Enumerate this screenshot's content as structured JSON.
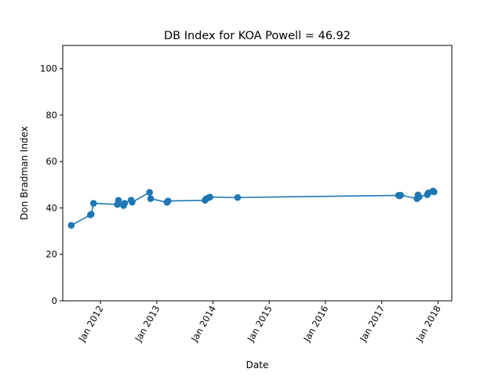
{
  "chart_data": {
    "type": "line",
    "title": "DB Index for KOA Powell = 46.92",
    "xlabel": "Date",
    "ylabel": "Don Bradman Index",
    "ylim": [
      0,
      110
    ],
    "yticks": [
      0,
      20,
      40,
      60,
      80,
      100
    ],
    "xlim": [
      "2011-05-01",
      "2018-04-01"
    ],
    "xticks": [
      {
        "date": "2012-01-01",
        "label": "Jan 2012"
      },
      {
        "date": "2013-01-01",
        "label": "Jan 2013"
      },
      {
        "date": "2014-01-01",
        "label": "Jan 2014"
      },
      {
        "date": "2015-01-01",
        "label": "Jan 2015"
      },
      {
        "date": "2016-01-01",
        "label": "Jan 2016"
      },
      {
        "date": "2017-01-01",
        "label": "Jan 2017"
      },
      {
        "date": "2018-01-01",
        "label": "Jan 2018"
      }
    ],
    "grid": false,
    "color": "#1f77b4",
    "series": [
      {
        "x": [
          "2011-06-25",
          "2011-10-28",
          "2011-11-02",
          "2011-11-17",
          "2012-04-20",
          "2012-04-27",
          "2012-05-30",
          "2012-06-06",
          "2012-07-18",
          "2012-07-25",
          "2012-11-15",
          "2012-11-22",
          "2013-03-08",
          "2013-03-15",
          "2013-11-10",
          "2013-11-17",
          "2013-12-05",
          "2013-12-12",
          "2014-06-10",
          "2017-04-20",
          "2017-04-27",
          "2017-05-04",
          "2017-08-18",
          "2017-08-25",
          "2017-09-01",
          "2017-10-24",
          "2017-10-31",
          "2017-11-30",
          "2017-12-07"
        ],
        "y": [
          32.5,
          37.0,
          37.3,
          42.0,
          41.5,
          43.3,
          41.0,
          42.0,
          43.4,
          42.5,
          46.7,
          44.0,
          42.4,
          43.0,
          43.3,
          43.9,
          44.5,
          44.7,
          44.5,
          45.4,
          45.2,
          45.5,
          44.0,
          45.6,
          44.8,
          45.7,
          46.5,
          47.3,
          46.9
        ]
      }
    ]
  }
}
